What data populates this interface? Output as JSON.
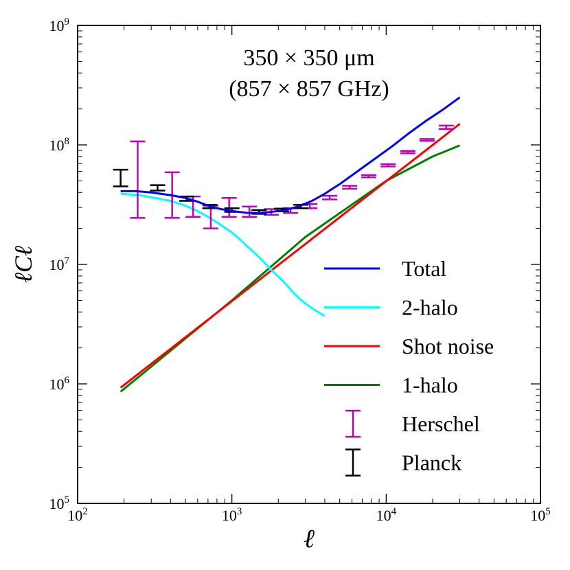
{
  "chart_data": {
    "type": "line",
    "title_line1": "350 × 350 μm",
    "title_line2": "(857 × 857 GHz)",
    "xlabel": "ℓ",
    "ylabel": "ℓCℓ",
    "xscale": "log",
    "yscale": "log",
    "xlim": [
      100,
      100000
    ],
    "ylim": [
      100000,
      1000000000
    ],
    "x_ticks": [
      {
        "value": 100,
        "base": "10",
        "exp": "2"
      },
      {
        "value": 1000,
        "base": "10",
        "exp": "3"
      },
      {
        "value": 10000,
        "base": "10",
        "exp": "4"
      },
      {
        "value": 100000,
        "base": "10",
        "exp": "5"
      }
    ],
    "y_ticks": [
      {
        "value": 100000,
        "base": "10",
        "exp": "5"
      },
      {
        "value": 1000000,
        "base": "10",
        "exp": "6"
      },
      {
        "value": 10000000,
        "base": "10",
        "exp": "7"
      },
      {
        "value": 100000000,
        "base": "10",
        "exp": "8"
      },
      {
        "value": 1000000000,
        "base": "10",
        "exp": "9"
      }
    ],
    "legend_position": "lower-right",
    "series": [
      {
        "name": "Total",
        "kind": "line",
        "color": "#0000ff",
        "x": [
          190,
          240,
          300,
          400,
          500,
          600,
          700,
          850,
          1000,
          1250,
          1500,
          1800,
          2200,
          2700,
          3300,
          4000,
          5000,
          6500,
          8500,
          11000,
          14000,
          18000,
          23000,
          30000
        ],
        "y": [
          41000000,
          41000000,
          40000000,
          38000000,
          36000000,
          33500000,
          31000000,
          29000000,
          28000000,
          27000000,
          27000000,
          27500000,
          28500000,
          30500000,
          34000000,
          39000000,
          47000000,
          60000000,
          77000000,
          98000000,
          125000000,
          158000000,
          195000000,
          250000000
        ]
      },
      {
        "name": "2-halo",
        "kind": "line",
        "color": "#00ffff",
        "x": [
          190,
          250,
          300,
          400,
          500,
          600,
          700,
          800,
          1000,
          1200,
          1500,
          1800,
          2200,
          2600,
          3000,
          3500,
          4000
        ],
        "y": [
          39000000,
          38000000,
          36500000,
          34000000,
          31000000,
          28000000,
          25000000,
          22500000,
          18500000,
          15000000,
          11500000,
          9000000,
          7000000,
          5500000,
          4700000,
          4100000,
          3700000
        ]
      },
      {
        "name": "Shot noise",
        "kind": "line",
        "color": "#ff0000",
        "x": [
          190,
          30000
        ],
        "y": [
          930000,
          150000000
        ]
      },
      {
        "name": "1-halo",
        "kind": "line",
        "color": "#008000",
        "x": [
          190,
          1000,
          3000,
          10000,
          20000,
          30000
        ],
        "y": [
          860000,
          5000000,
          17000000,
          50000000,
          80000000,
          99000000
        ]
      },
      {
        "name": "Herschel",
        "kind": "errorbar",
        "color": "#bf00bf",
        "x": [
          245,
          410,
          560,
          730,
          960,
          1300,
          1800,
          2400,
          3200,
          4300,
          5800,
          7700,
          10300,
          13800,
          18400,
          24500
        ],
        "y": [
          51000000,
          38000000,
          30000000,
          25000000,
          30000000,
          28000000,
          27500000,
          28000000,
          30500000,
          36000000,
          44000000,
          54500000,
          67500000,
          87000000,
          110000000,
          140000000
        ],
        "ylow": [
          24500000,
          24500000,
          25000000,
          20000000,
          25000000,
          25000000,
          26000000,
          27000000,
          29500000,
          35000000,
          43000000,
          53500000,
          66000000,
          85000000,
          108000000,
          136000000
        ],
        "yhigh": [
          107000000,
          59000000,
          37000000,
          31000000,
          36000000,
          30500000,
          29000000,
          29500000,
          32000000,
          37500000,
          45500000,
          56000000,
          69000000,
          89000000,
          112000000,
          145000000
        ]
      },
      {
        "name": "Planck",
        "kind": "errorbar",
        "color": "#000000",
        "x": [
          190,
          330,
          510,
          720,
          1000,
          1500,
          2100,
          2800
        ],
        "y": [
          52000000,
          43500000,
          35500000,
          30500000,
          28500000,
          27500000,
          28500000,
          30500000
        ],
        "ylow": [
          45000000,
          41500000,
          34000000,
          29500000,
          27500000,
          26500000,
          27800000,
          29500000
        ],
        "yhigh": [
          62000000,
          46000000,
          37000000,
          31500000,
          29500000,
          28500000,
          29300000,
          31500000
        ]
      }
    ]
  }
}
